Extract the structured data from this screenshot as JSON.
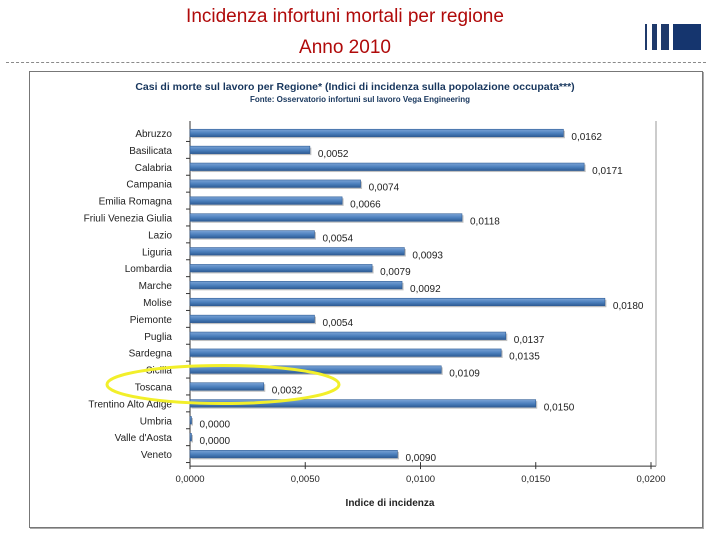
{
  "slide": {
    "title_line1": "Incidenza infortuni mortali per regione",
    "title_line2": "Anno 2010"
  },
  "chart_data": {
    "type": "bar",
    "orientation": "horizontal",
    "title": "Casi di morte sul lavoro per Regione* (Indici di incidenza sulla popolazione occupata***)",
    "subtitle": "Fonte: Osservatorio infortuni sul lavoro Vega Engineering",
    "xlabel": "Indice di incidenza",
    "ylabel": "",
    "xlim": [
      0,
      0.02
    ],
    "x_ticks": [
      "0,0000",
      "0,0050",
      "0,0100",
      "0,0150",
      "0,0200"
    ],
    "grid": false,
    "legend": "none",
    "categories": [
      "Abruzzo",
      "Basilicata",
      "Calabria",
      "Campania",
      "Emilia Romagna",
      "Friuli Venezia Giulia",
      "Lazio",
      "Liguria",
      "Lombardia",
      "Marche",
      "Molise",
      "Piemonte",
      "Puglia",
      "Sardegna",
      "Sicilia",
      "Toscana",
      "Trentino Alto Adige",
      "Umbria",
      "Valle d'Aosta",
      "Veneto"
    ],
    "values": [
      0.0162,
      0.0052,
      0.0171,
      0.0074,
      0.0066,
      0.0118,
      0.0054,
      0.0093,
      0.0079,
      0.0092,
      0.018,
      0.0054,
      0.0137,
      0.0135,
      0.0109,
      0.0032,
      0.015,
      0.0,
      0.0,
      0.009
    ],
    "value_labels": [
      "0,0162",
      "0,0052",
      "0,0171",
      "0,0074",
      "0,0066",
      "0,0118",
      "0,0054",
      "0,0093",
      "0,0079",
      "0,0092",
      "0,0180",
      "0,0054",
      "0,0137",
      "0,0135",
      "0,0109",
      "0,0032",
      "0,0150",
      "0,0000",
      "0,0000",
      "0,0090"
    ],
    "highlight_category": "Toscana",
    "colors": {
      "bar": "#4a7ebb",
      "bar_dark": "#2f5c95",
      "bar_light": "#7aa3d6",
      "highlight": "#f2ef2a",
      "title": "#17365d"
    }
  }
}
